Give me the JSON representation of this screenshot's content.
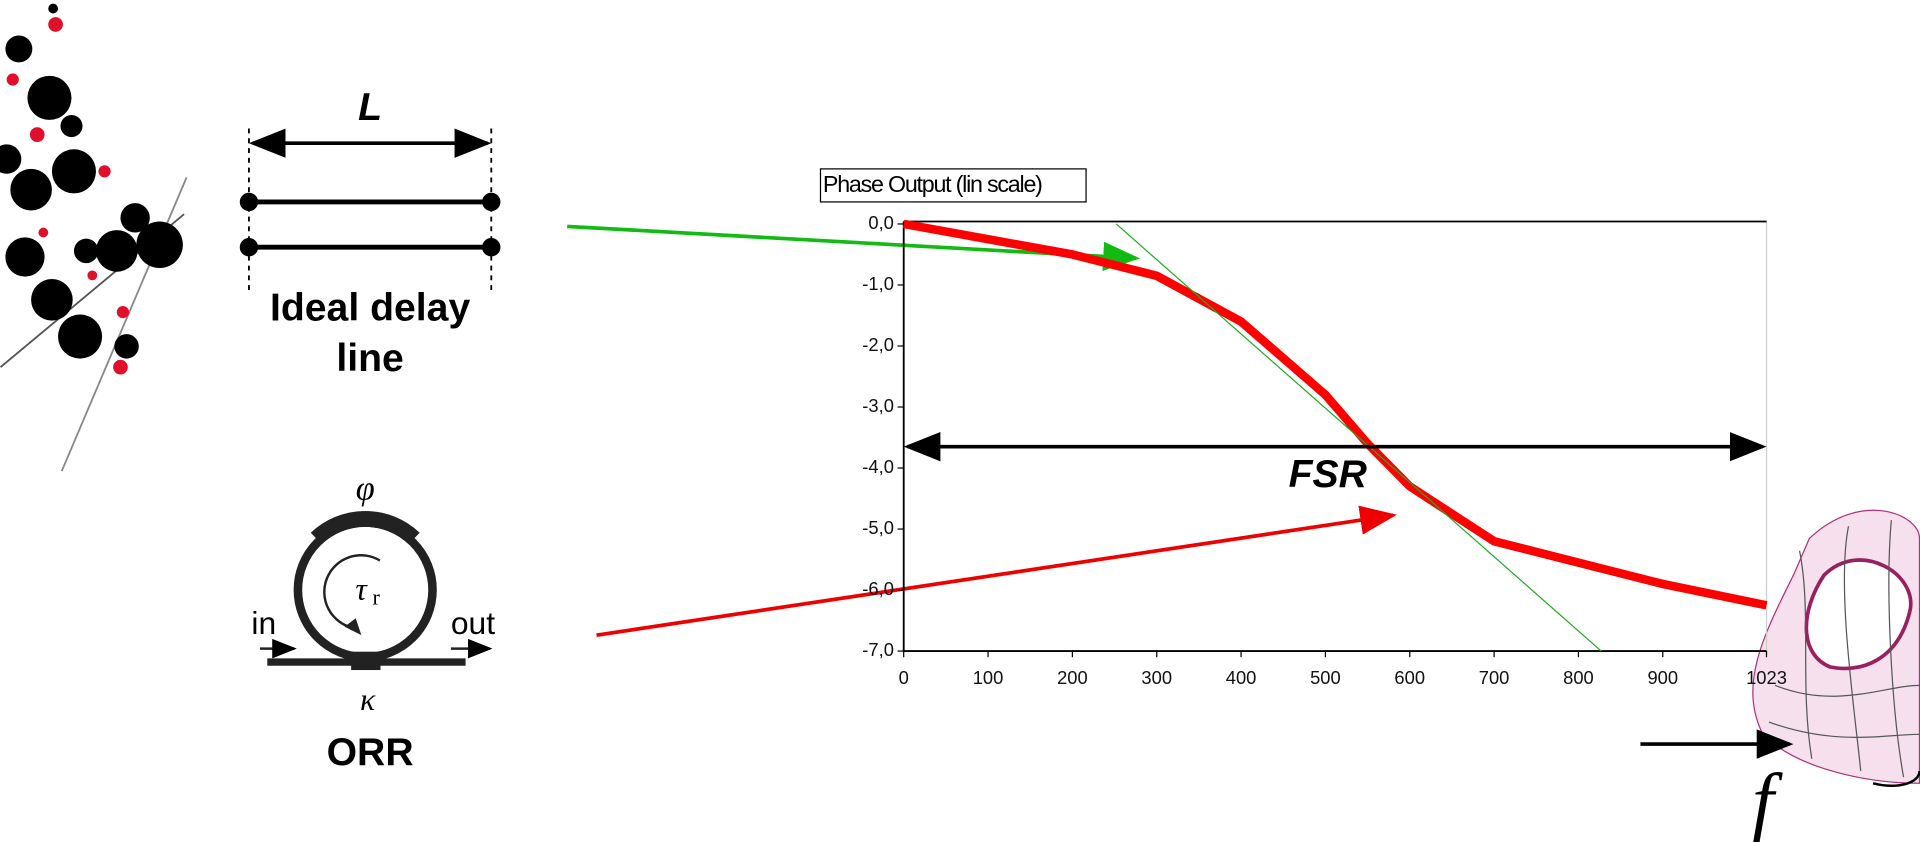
{
  "chart_data": {
    "type": "line",
    "title": "Phase Output (lin scale)",
    "x": [
      0,
      100,
      200,
      300,
      400,
      500,
      550,
      600,
      700,
      800,
      900,
      1023
    ],
    "series": [
      {
        "color": "#ff0000",
        "values": [
          0,
          -0.25,
          -0.5,
          -0.85,
          -1.6,
          -2.8,
          -3.6,
          -4.3,
          -5.2,
          -5.55,
          -5.9,
          -6.25
        ]
      },
      {
        "color": "#22aa22",
        "x": [
          252,
          827
        ],
        "values": [
          0,
          -7
        ]
      }
    ],
    "xlim": [
      0,
      1023
    ],
    "xticks": [
      0,
      100,
      200,
      300,
      400,
      500,
      600,
      700,
      800,
      900,
      1023
    ],
    "ylim": [
      -7,
      0
    ],
    "yticks": [
      {
        "value": 0,
        "label": "0,0"
      },
      {
        "value": -1,
        "label": "-1,0"
      },
      {
        "value": -2,
        "label": "-2,0"
      },
      {
        "value": -3,
        "label": "-3,0"
      },
      {
        "value": -4,
        "label": "-4,0"
      },
      {
        "value": -5,
        "label": "-5,0"
      },
      {
        "value": -6,
        "label": "-6,0"
      },
      {
        "value": -7,
        "label": "-7,0"
      }
    ],
    "annotation": {
      "text": "FSR",
      "y": -3.65
    }
  },
  "delay_line": {
    "length_label": "L",
    "caption_lines": [
      "Ideal delay",
      "line"
    ]
  },
  "orr": {
    "phase": "φ",
    "round_trip": "τ",
    "round_trip_sub": "r",
    "input": "in",
    "output": "out",
    "coupling": "κ",
    "caption": "ORR"
  },
  "frequency_label": "f"
}
